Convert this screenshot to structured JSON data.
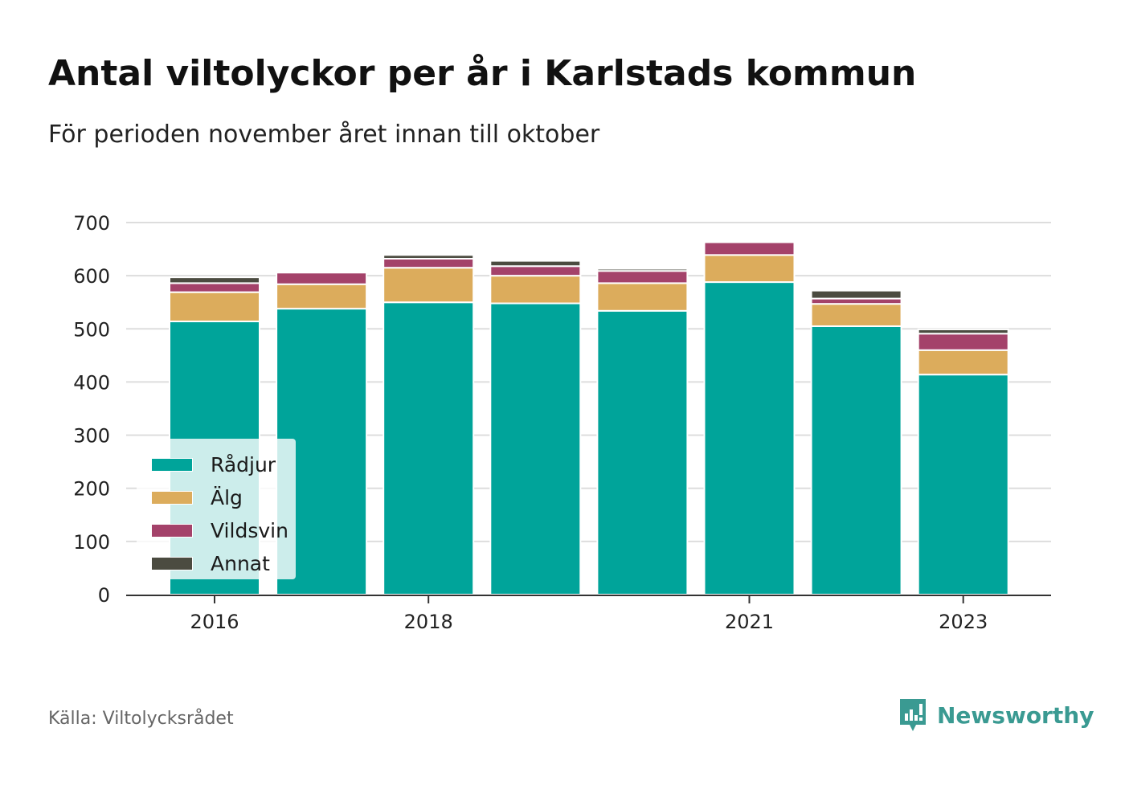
{
  "title": "Antal viltolyckor per år i Karlstads kommun",
  "subtitle": "För perioden november året innan till oktober",
  "source": "Källa: Viltolycksrådet",
  "brand": {
    "name": "Newsworthy"
  },
  "colors": {
    "radjur": "#00a49a",
    "alg": "#dcac5c",
    "vildsvin": "#a4426a",
    "annat": "#4b4b40",
    "grid": "#dddddd",
    "brand": "#3a9a92"
  },
  "chart_data": {
    "type": "bar",
    "stacked": true,
    "categories": [
      "2016",
      "2017",
      "2018",
      "2019",
      "2020",
      "2021",
      "2022",
      "2023"
    ],
    "tick_labels": [
      "2016",
      "2018",
      "2021",
      "2023"
    ],
    "series": [
      {
        "key": "radjur",
        "name": "Rådjur",
        "values": [
          514,
          538,
          550,
          548,
          534,
          588,
          505,
          414
        ]
      },
      {
        "key": "alg",
        "name": "Älg",
        "values": [
          55,
          46,
          65,
          52,
          52,
          51,
          42,
          46
        ]
      },
      {
        "key": "vildsvin",
        "name": "Vildsvin",
        "values": [
          17,
          22,
          17,
          18,
          23,
          24,
          10,
          31
        ]
      },
      {
        "key": "annat",
        "name": "Annat",
        "values": [
          11,
          3,
          7,
          10,
          4,
          0,
          15,
          8
        ]
      }
    ],
    "yticks": [
      0,
      100,
      200,
      300,
      400,
      500,
      600,
      700
    ],
    "ylim": [
      0,
      700
    ],
    "grid": true,
    "legend_position": "bottom-left"
  }
}
